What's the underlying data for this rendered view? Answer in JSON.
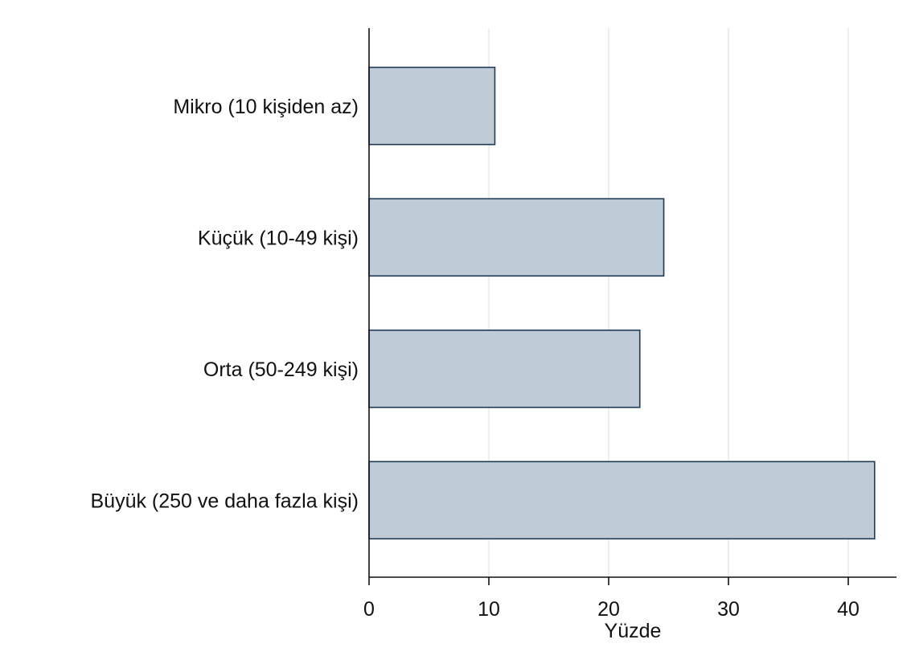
{
  "chart_data": {
    "type": "bar",
    "orientation": "horizontal",
    "categories": [
      "Mikro (10 kişiden az)",
      "Küçük (10-49 kişi)",
      "Orta (50-249 kişi)",
      "Büyük (250 ve daha fazla kişi)"
    ],
    "values": [
      10.5,
      24.6,
      22.6,
      42.2
    ],
    "xlabel": "Yüzde",
    "ylabel": "",
    "xlim": [
      0,
      44
    ],
    "xticks": [
      "0",
      "10",
      "20",
      "30",
      "40"
    ],
    "grid": true,
    "bar_color": "#bfcbd6",
    "bar_edge_color": "#1f3b57",
    "grid_color": "#e3ecec"
  }
}
